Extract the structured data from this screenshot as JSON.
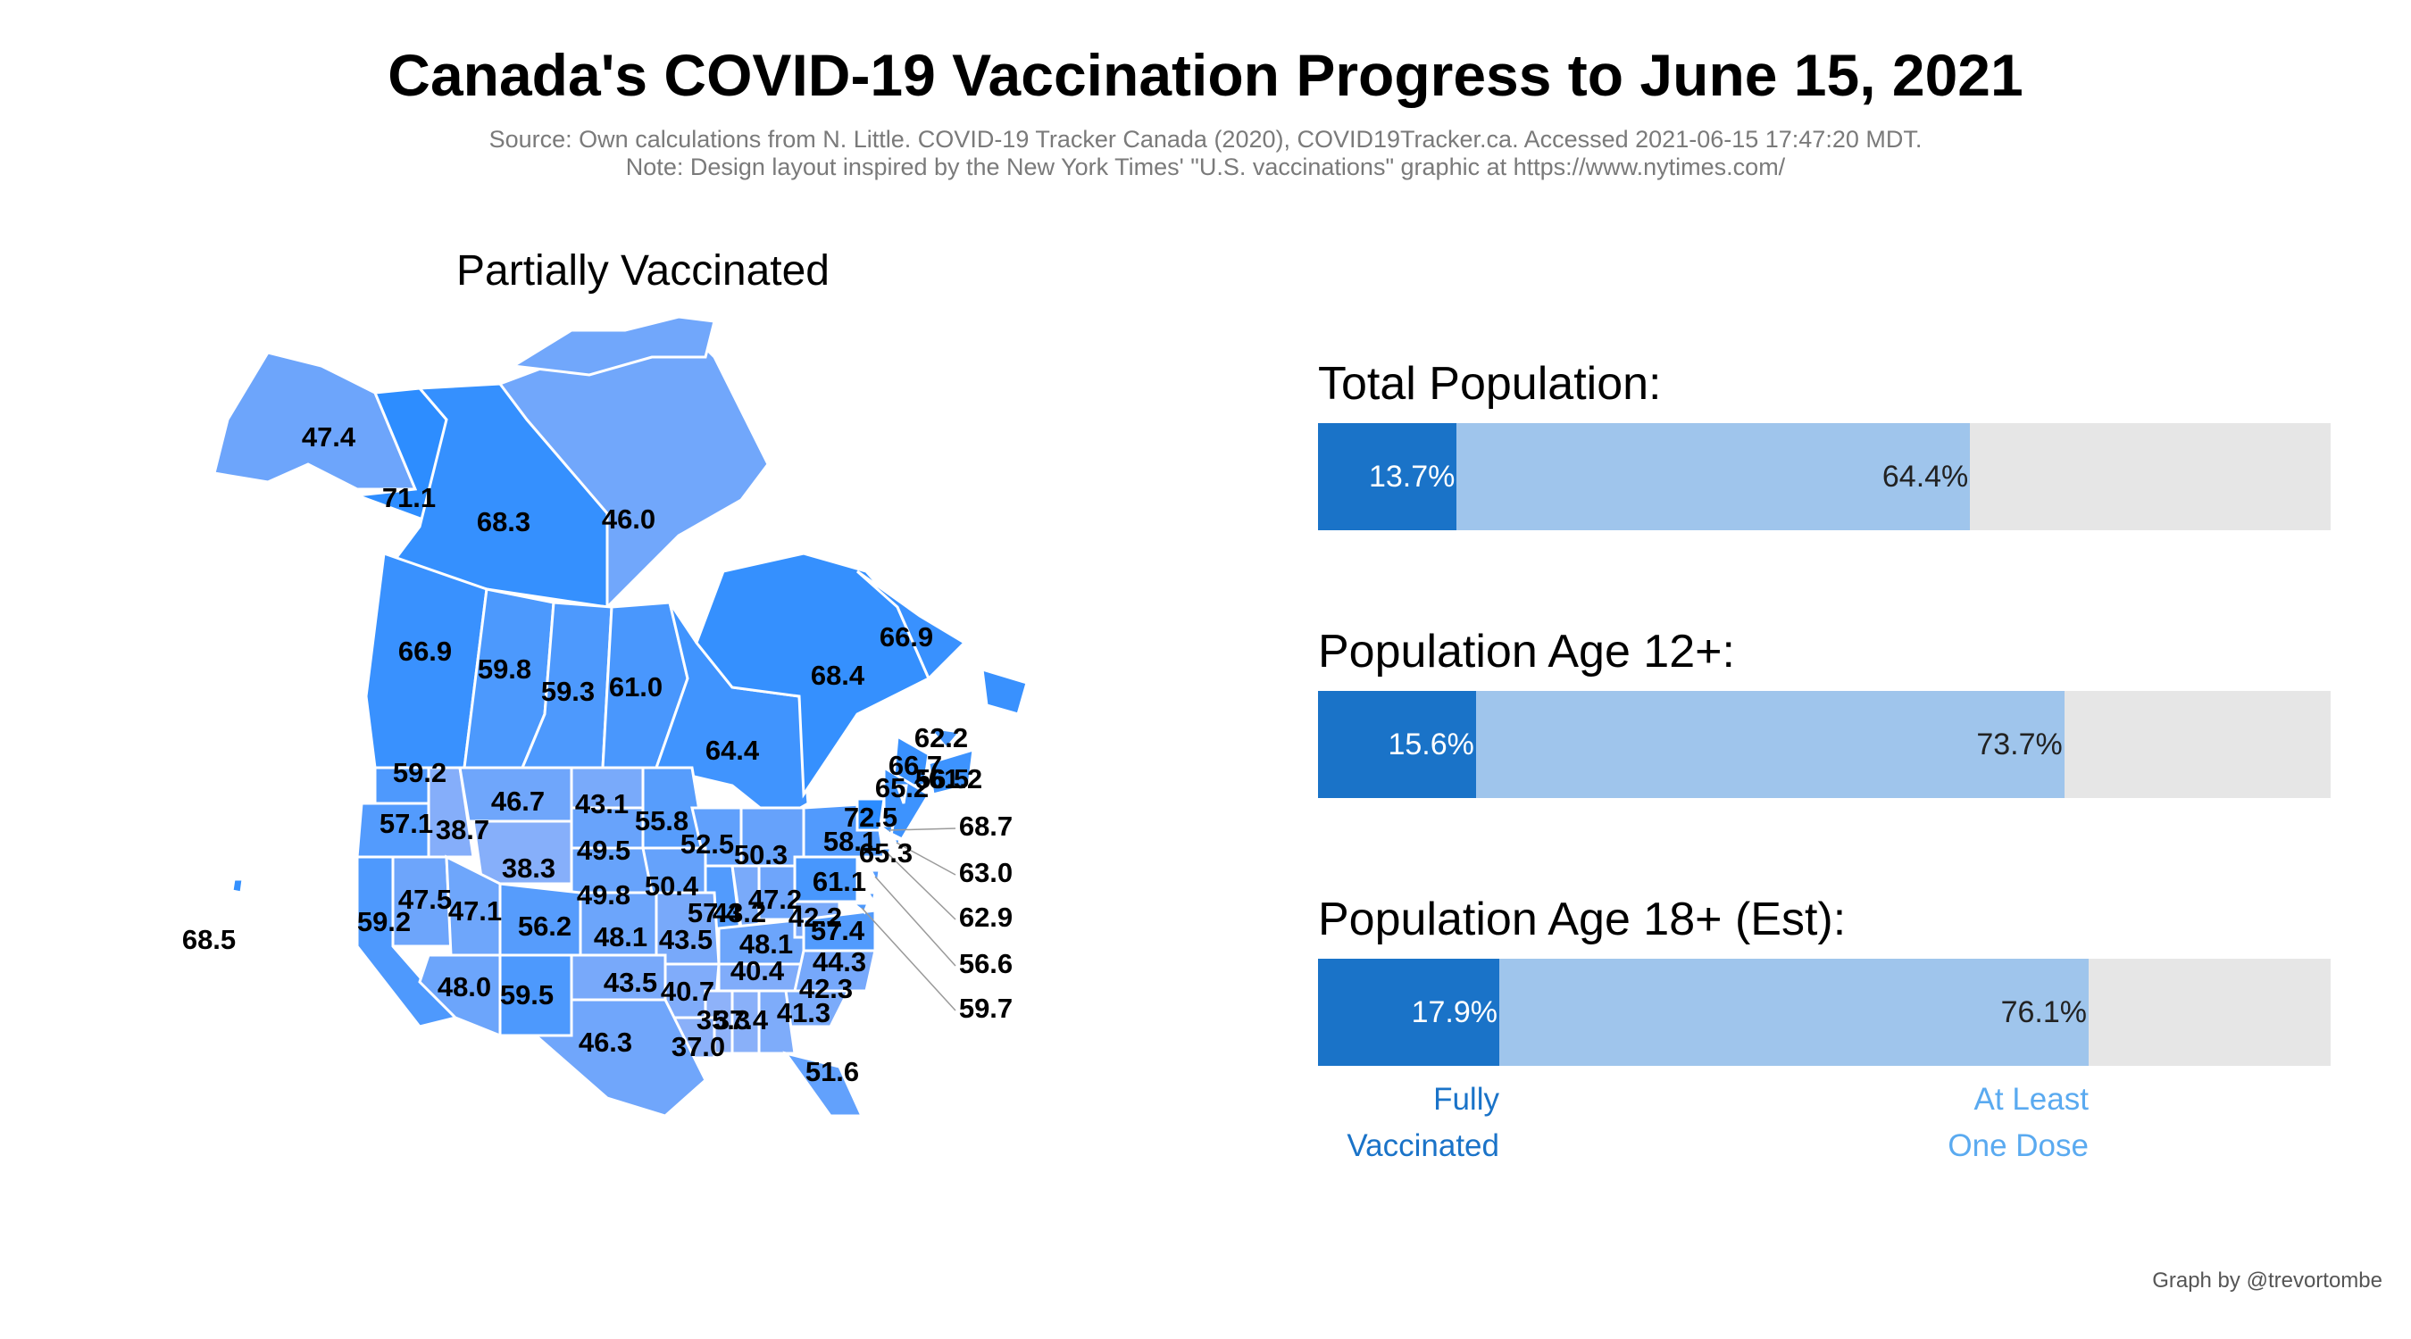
{
  "title": "Canada's COVID-19 Vaccination Progress to June 15, 2021",
  "source": "Source: Own calculations from N. Little. COVID-19 Tracker Canada (2020), COVID19Tracker.ca. Accessed 2021-06-15 17:47:20 MDT.",
  "design_note": "Note: Design layout inspired by the New York Times' \"U.S. vaccinations\" graphic at https://www.nytimes.com/",
  "credit": "Graph by @trevortombe",
  "legend": {
    "fully_line1": "Fully",
    "fully_line2": "Vaccinated",
    "dose_line1": "At Least",
    "dose_line2": "One Dose"
  },
  "colors": {
    "fully": "#1a73c8",
    "dose": "#9fc5ec",
    "background_bar": "#e6e6e6",
    "legend_dose": "#5aaaf0",
    "map_scale": [
      "#8fb2f9",
      "#2b8cff"
    ]
  },
  "chart_data": [
    {
      "type": "map",
      "title": "Partially Vaccinated",
      "unit": "percent",
      "scale": [
        35,
        72
      ],
      "regions": [
        {
          "name": "Alaska",
          "value": 47.4
        },
        {
          "name": "Yukon",
          "value": 71.1
        },
        {
          "name": "Northwest Territories",
          "value": 68.3
        },
        {
          "name": "Nunavut",
          "value": 46.0
        },
        {
          "name": "British Columbia",
          "value": 66.9
        },
        {
          "name": "Alberta",
          "value": 59.8
        },
        {
          "name": "Saskatchewan",
          "value": 59.3
        },
        {
          "name": "Manitoba",
          "value": 61.0
        },
        {
          "name": "Ontario",
          "value": 64.4
        },
        {
          "name": "Quebec",
          "value": 68.4
        },
        {
          "name": "Newfoundland and Labrador",
          "value": 66.9
        },
        {
          "name": "Prince Edward Island",
          "value": 62.2
        },
        {
          "name": "New Brunswick",
          "value": 66.7
        },
        {
          "name": "Nova Scotia",
          "value": 65.2
        },
        {
          "name": "Washington",
          "value": 59.2
        },
        {
          "name": "Oregon",
          "value": 57.1
        },
        {
          "name": "Idaho",
          "value": 38.7
        },
        {
          "name": "Montana",
          "value": 46.7
        },
        {
          "name": "North Dakota",
          "value": 43.1
        },
        {
          "name": "Minnesota",
          "value": 55.8
        },
        {
          "name": "Wisconsin",
          "value": 52.5
        },
        {
          "name": "Michigan",
          "value": 50.3
        },
        {
          "name": "Wyoming",
          "value": 38.3
        },
        {
          "name": "South Dakota",
          "value": 49.5
        },
        {
          "name": "Nebraska",
          "value": 49.8
        },
        {
          "name": "Iowa",
          "value": 50.4
        },
        {
          "name": "Illinois",
          "value": 57.4
        },
        {
          "name": "Indiana",
          "value": 43.2
        },
        {
          "name": "Ohio",
          "value": 47.2
        },
        {
          "name": "Pennsylvania",
          "value": 61.1
        },
        {
          "name": "New York",
          "value": 58.1
        },
        {
          "name": "Vermont",
          "value": 72.5
        },
        {
          "name": "Maine",
          "value": 65.3
        },
        {
          "name": "Nevada",
          "value": 47.5
        },
        {
          "name": "Utah",
          "value": 47.1
        },
        {
          "name": "Colorado",
          "value": 56.2
        },
        {
          "name": "California",
          "value": 59.2
        },
        {
          "name": "Kansas",
          "value": 48.1
        },
        {
          "name": "Missouri",
          "value": 43.5
        },
        {
          "name": "Kentucky",
          "value": 48.1
        },
        {
          "name": "West Virginia",
          "value": 42.2
        },
        {
          "name": "Virginia",
          "value": 57.4
        },
        {
          "name": "Arizona",
          "value": 48.0
        },
        {
          "name": "New Mexico",
          "value": 59.5
        },
        {
          "name": "Oklahoma",
          "value": 43.5
        },
        {
          "name": "Arkansas",
          "value": 40.7
        },
        {
          "name": "Tennessee",
          "value": 40.4
        },
        {
          "name": "North Carolina",
          "value": 44.3
        },
        {
          "name": "South Carolina",
          "value": 42.3
        },
        {
          "name": "Georgia",
          "value": 41.3
        },
        {
          "name": "Alabama",
          "value": 37.4
        },
        {
          "name": "Mississippi",
          "value": 35.3
        },
        {
          "name": "Louisiana",
          "value": 37.0
        },
        {
          "name": "Texas",
          "value": 46.3
        },
        {
          "name": "Florida",
          "value": 51.6
        },
        {
          "name": "Hawaii",
          "value": 68.5
        },
        {
          "name": "New Hampshire",
          "value": 61.2
        },
        {
          "name": "Massachusetts",
          "value": 68.7
        },
        {
          "name": "Rhode Island",
          "value": 63.0
        },
        {
          "name": "Connecticut",
          "value": 62.9
        },
        {
          "name": "New Jersey",
          "value": 56.6
        },
        {
          "name": "Delaware",
          "value": 56.5
        },
        {
          "name": "Maryland",
          "value": 59.7
        }
      ]
    },
    {
      "type": "bar",
      "orientation": "horizontal",
      "xlim": [
        0,
        100
      ],
      "unit": "percent",
      "series_names": [
        "Fully Vaccinated",
        "At Least One Dose"
      ],
      "groups": [
        {
          "label": "Total Population:",
          "fully": 13.7,
          "at_least_one": 64.4,
          "fully_text": "13.7%",
          "at_least_one_text": "64.4%"
        },
        {
          "label": "Population Age 12+:",
          "fully": 15.6,
          "at_least_one": 73.7,
          "fully_text": "15.6%",
          "at_least_one_text": "73.7%"
        },
        {
          "label": "Population Age 18+ (Est):",
          "fully": 17.9,
          "at_least_one": 76.1,
          "fully_text": "17.9%",
          "at_least_one_text": "76.1%"
        }
      ]
    }
  ]
}
